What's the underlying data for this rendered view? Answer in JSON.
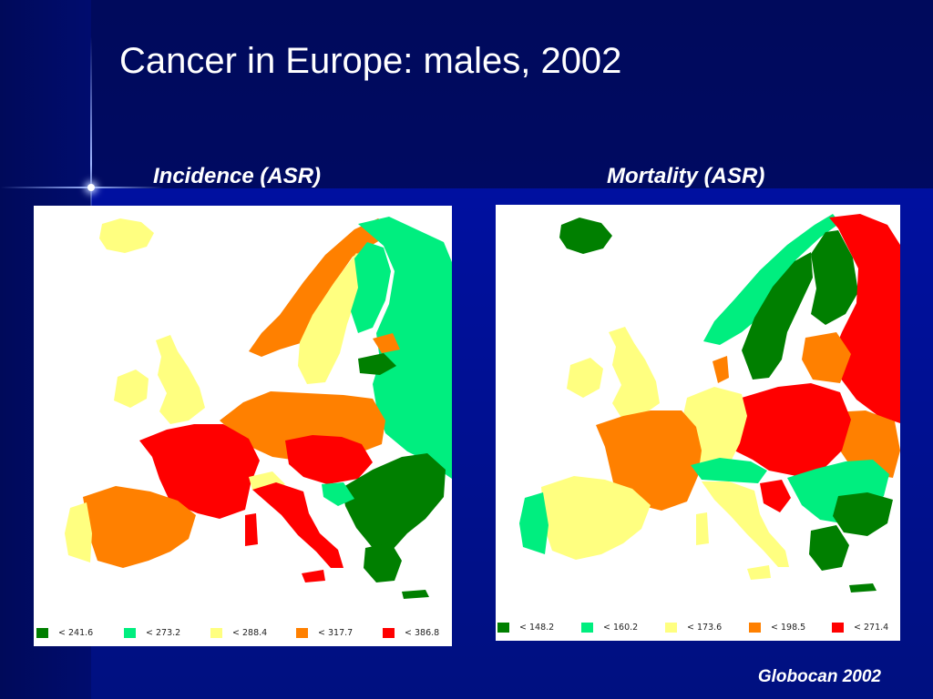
{
  "slide": {
    "title": "Cancer in Europe: males, 2002",
    "source": "Globocan 2002"
  },
  "maps": [
    {
      "subtitle": "Incidence (ASR)",
      "legend": [
        {
          "label": "< 241.6",
          "color": "#007f00"
        },
        {
          "label": "< 273.2",
          "color": "#00ee7f"
        },
        {
          "label": "< 288.4",
          "color": "#ffff80"
        },
        {
          "label": "< 317.7",
          "color": "#ff8000"
        },
        {
          "label": "< 386.8",
          "color": "#ff0000"
        }
      ]
    },
    {
      "subtitle": "Mortality (ASR)",
      "legend": [
        {
          "label": "< 148.2",
          "color": "#007f00"
        },
        {
          "label": "< 160.2",
          "color": "#00ee7f"
        },
        {
          "label": "< 173.6",
          "color": "#ffff80"
        },
        {
          "label": "< 198.5",
          "color": "#ff8000"
        },
        {
          "label": "< 271.4",
          "color": "#ff0000"
        }
      ]
    }
  ]
}
